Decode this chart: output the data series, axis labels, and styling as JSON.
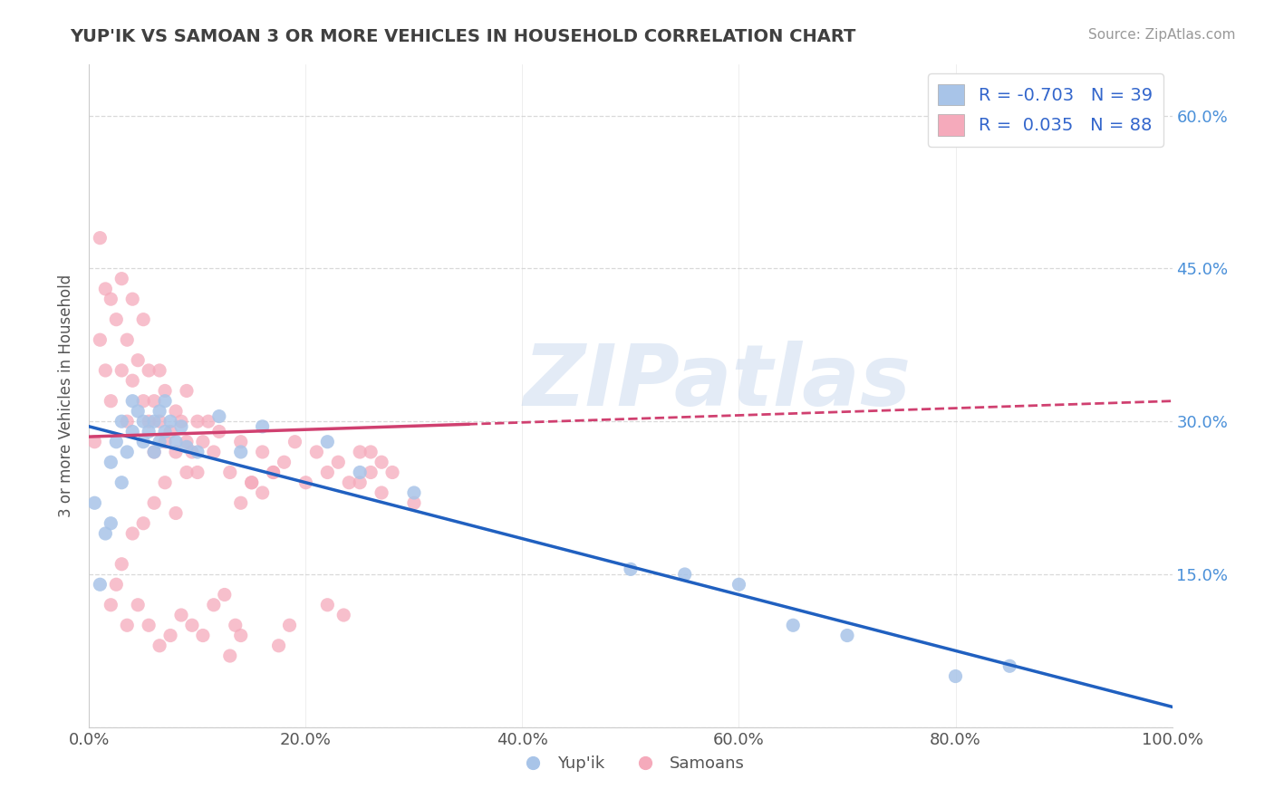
{
  "title": "YUP'IK VS SAMOAN 3 OR MORE VEHICLES IN HOUSEHOLD CORRELATION CHART",
  "source": "Source: ZipAtlas.com",
  "ylabel": "3 or more Vehicles in Household",
  "xlim": [
    0.0,
    1.0
  ],
  "ylim": [
    0.0,
    0.65
  ],
  "xticks": [
    0.0,
    0.2,
    0.4,
    0.6,
    0.8,
    1.0
  ],
  "yticks": [
    0.0,
    0.15,
    0.3,
    0.45,
    0.6
  ],
  "ytick_labels_right": [
    "",
    "15.0%",
    "30.0%",
    "45.0%",
    "60.0%"
  ],
  "xtick_labels": [
    "0.0%",
    "20.0%",
    "40.0%",
    "60.0%",
    "80.0%",
    "100.0%"
  ],
  "legend_labels": [
    "Yup'ik",
    "Samoans"
  ],
  "series1_color": "#a8c4e8",
  "series2_color": "#f5aabb",
  "series1_R": -0.703,
  "series1_N": 39,
  "series2_R": 0.035,
  "series2_N": 88,
  "trend1_color": "#2060c0",
  "trend2_color": "#d04070",
  "background_color": "#ffffff",
  "grid_color": "#d0d0d0",
  "title_color": "#404040",
  "watermark": "ZIPatlas",
  "trend1_x0": 0.0,
  "trend1_y0": 0.295,
  "trend1_x1": 1.0,
  "trend1_y1": 0.02,
  "trend2_x0": 0.0,
  "trend2_y0": 0.285,
  "trend2_x1": 1.0,
  "trend2_y1": 0.32,
  "trend2_solid_end": 0.35,
  "series1_x": [
    0.005,
    0.01,
    0.015,
    0.02,
    0.02,
    0.025,
    0.03,
    0.03,
    0.035,
    0.04,
    0.04,
    0.045,
    0.05,
    0.05,
    0.055,
    0.06,
    0.06,
    0.065,
    0.065,
    0.07,
    0.07,
    0.075,
    0.08,
    0.085,
    0.09,
    0.1,
    0.12,
    0.14,
    0.16,
    0.22,
    0.25,
    0.3,
    0.5,
    0.55,
    0.6,
    0.65,
    0.7,
    0.8,
    0.85
  ],
  "series1_y": [
    0.22,
    0.14,
    0.19,
    0.26,
    0.2,
    0.28,
    0.24,
    0.3,
    0.27,
    0.29,
    0.32,
    0.31,
    0.3,
    0.28,
    0.29,
    0.3,
    0.27,
    0.31,
    0.28,
    0.29,
    0.32,
    0.3,
    0.28,
    0.295,
    0.275,
    0.27,
    0.305,
    0.27,
    0.295,
    0.28,
    0.25,
    0.23,
    0.155,
    0.15,
    0.14,
    0.1,
    0.09,
    0.05,
    0.06
  ],
  "series2_x": [
    0.005,
    0.01,
    0.01,
    0.015,
    0.015,
    0.02,
    0.02,
    0.025,
    0.03,
    0.03,
    0.035,
    0.035,
    0.04,
    0.04,
    0.045,
    0.05,
    0.05,
    0.055,
    0.055,
    0.06,
    0.06,
    0.065,
    0.065,
    0.07,
    0.07,
    0.075,
    0.08,
    0.08,
    0.085,
    0.09,
    0.09,
    0.095,
    0.1,
    0.1,
    0.105,
    0.11,
    0.115,
    0.12,
    0.13,
    0.14,
    0.15,
    0.16,
    0.17,
    0.18,
    0.19,
    0.2,
    0.21,
    0.22,
    0.23,
    0.24,
    0.25,
    0.26,
    0.27,
    0.28,
    0.14,
    0.15,
    0.16,
    0.17,
    0.25,
    0.26,
    0.27,
    0.05,
    0.06,
    0.07,
    0.08,
    0.09,
    0.03,
    0.04,
    0.02,
    0.025,
    0.3,
    0.035,
    0.045,
    0.055,
    0.065,
    0.075,
    0.085,
    0.095,
    0.105,
    0.115,
    0.125,
    0.135,
    0.175,
    0.185,
    0.22,
    0.235,
    0.13,
    0.14
  ],
  "series2_y": [
    0.28,
    0.48,
    0.38,
    0.43,
    0.35,
    0.42,
    0.32,
    0.4,
    0.44,
    0.35,
    0.38,
    0.3,
    0.42,
    0.34,
    0.36,
    0.32,
    0.4,
    0.3,
    0.35,
    0.32,
    0.27,
    0.3,
    0.35,
    0.28,
    0.33,
    0.29,
    0.31,
    0.27,
    0.3,
    0.28,
    0.33,
    0.27,
    0.3,
    0.25,
    0.28,
    0.3,
    0.27,
    0.29,
    0.25,
    0.28,
    0.24,
    0.27,
    0.25,
    0.26,
    0.28,
    0.24,
    0.27,
    0.25,
    0.26,
    0.24,
    0.27,
    0.25,
    0.26,
    0.25,
    0.22,
    0.24,
    0.23,
    0.25,
    0.24,
    0.27,
    0.23,
    0.2,
    0.22,
    0.24,
    0.21,
    0.25,
    0.16,
    0.19,
    0.12,
    0.14,
    0.22,
    0.1,
    0.12,
    0.1,
    0.08,
    0.09,
    0.11,
    0.1,
    0.09,
    0.12,
    0.13,
    0.1,
    0.08,
    0.1,
    0.12,
    0.11,
    0.07,
    0.09
  ]
}
